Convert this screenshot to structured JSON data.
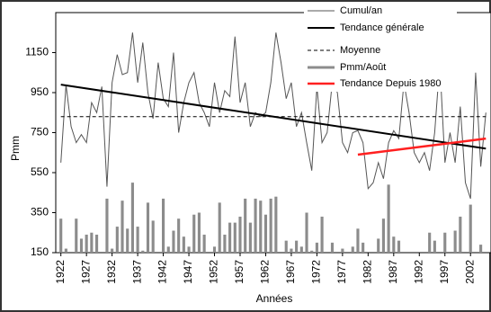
{
  "chart_data": {
    "type": "line",
    "x": [
      1922,
      1923,
      1924,
      1925,
      1926,
      1927,
      1928,
      1929,
      1930,
      1931,
      1932,
      1933,
      1934,
      1935,
      1936,
      1937,
      1938,
      1939,
      1940,
      1941,
      1942,
      1943,
      1944,
      1945,
      1946,
      1947,
      1948,
      1949,
      1950,
      1951,
      1952,
      1953,
      1954,
      1955,
      1956,
      1957,
      1958,
      1959,
      1960,
      1961,
      1962,
      1963,
      1964,
      1965,
      1966,
      1967,
      1968,
      1969,
      1970,
      1971,
      1972,
      1973,
      1974,
      1975,
      1976,
      1977,
      1978,
      1979,
      1980,
      1981,
      1982,
      1983,
      1984,
      1985,
      1986,
      1987,
      1988,
      1989,
      1990,
      1991,
      1992,
      1993,
      1994,
      1995,
      1996,
      1997,
      1998,
      1999,
      2000,
      2001,
      2002,
      2003,
      2004,
      2005
    ],
    "xlim": [
      1921,
      2006
    ],
    "xticks": [
      1922,
      1927,
      1932,
      1937,
      1942,
      1947,
      1952,
      1957,
      1962,
      1967,
      1972,
      1977,
      1982,
      1987,
      1992,
      1997,
      2002
    ],
    "ylim": [
      150,
      1350
    ],
    "yticks": [
      150,
      350,
      550,
      750,
      950,
      1150
    ],
    "xlabel": "Années",
    "ylabel": "Pmm",
    "series": [
      {
        "name": "Cumul/an",
        "type": "line",
        "color": "#555555",
        "width": 1,
        "values": [
          600,
          990,
          780,
          700,
          740,
          700,
          900,
          850,
          980,
          480,
          1000,
          1140,
          1040,
          1050,
          1250,
          1000,
          1200,
          950,
          820,
          1100,
          920,
          880,
          1150,
          750,
          900,
          1000,
          1050,
          900,
          850,
          780,
          1000,
          850,
          960,
          930,
          1230,
          900,
          1000,
          780,
          850,
          830,
          850,
          1000,
          1250,
          1100,
          920,
          1000,
          780,
          850,
          700,
          560,
          980,
          700,
          750,
          1000,
          950,
          700,
          650,
          750,
          760,
          700,
          470,
          500,
          600,
          520,
          700,
          760,
          720,
          1000,
          850,
          650,
          600,
          650,
          560,
          750,
          1100,
          600,
          750,
          600,
          880,
          500,
          420,
          1050,
          580,
          850
        ]
      },
      {
        "name": "Tendance générale",
        "type": "line",
        "color": "#000000",
        "width": 2,
        "x": [
          1922,
          2005
        ],
        "values": [
          990,
          670
        ]
      },
      {
        "name": "Moyenne",
        "type": "line",
        "color": "#000000",
        "width": 1,
        "dash": "dashed",
        "x": [
          1922,
          2005
        ],
        "values": [
          830,
          830
        ]
      },
      {
        "name": "Pmm/Août",
        "type": "bar",
        "color": "#8c8c8c",
        "values": [
          320,
          170,
          150,
          320,
          220,
          240,
          250,
          240,
          150,
          420,
          170,
          280,
          410,
          270,
          500,
          280,
          160,
          400,
          310,
          150,
          420,
          180,
          260,
          320,
          230,
          180,
          340,
          350,
          240,
          150,
          180,
          400,
          240,
          300,
          300,
          330,
          420,
          300,
          420,
          410,
          340,
          420,
          430,
          150,
          210,
          170,
          210,
          180,
          350,
          160,
          200,
          330,
          150,
          200,
          150,
          170,
          150,
          180,
          270,
          200,
          150,
          150,
          220,
          320,
          490,
          230,
          210,
          150,
          150,
          150,
          150,
          150,
          250,
          210,
          150,
          250,
          150,
          260,
          330,
          150,
          390,
          150,
          190,
          150
        ]
      },
      {
        "name": "Tendance Depuis 1980",
        "type": "line",
        "color": "#ff2020",
        "width": 2.5,
        "x": [
          1980,
          2005
        ],
        "values": [
          640,
          720
        ]
      }
    ]
  }
}
